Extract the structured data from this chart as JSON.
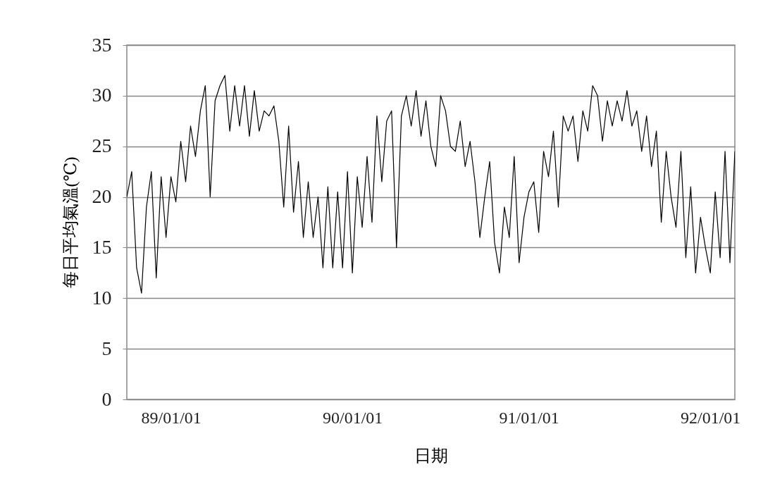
{
  "chart_data": {
    "type": "line",
    "xlabel": "日期",
    "ylabel": "每日平均氣溫(℃)",
    "color": "#000000",
    "grid": "y",
    "ylim": [
      0,
      35
    ],
    "yticks": [
      0,
      5,
      10,
      15,
      20,
      25,
      30,
      35
    ],
    "categories": [
      null,
      null,
      null,
      null,
      null,
      null,
      null,
      null,
      null,
      "89/01/01",
      null,
      null,
      null,
      null,
      null,
      null,
      null,
      null,
      null,
      null,
      null,
      null,
      null,
      null,
      null,
      null,
      null,
      null,
      null,
      null,
      null,
      null,
      null,
      null,
      null,
      null,
      null,
      null,
      null,
      null,
      null,
      null,
      null,
      null,
      null,
      null,
      "90/01/01",
      null,
      null,
      null,
      null,
      null,
      null,
      null,
      null,
      null,
      null,
      null,
      null,
      null,
      null,
      null,
      null,
      null,
      null,
      null,
      null,
      null,
      null,
      null,
      null,
      null,
      null,
      null,
      null,
      null,
      null,
      null,
      null,
      null,
      null,
      null,
      "91/01/01",
      null,
      null,
      null,
      null,
      null,
      null,
      null,
      null,
      null,
      null,
      null,
      null,
      null,
      null,
      null,
      null,
      null,
      null,
      null,
      null,
      null,
      null,
      null,
      null,
      null,
      null,
      null,
      null,
      null,
      null,
      null,
      null,
      null,
      null,
      null,
      null,
      "92/01/01",
      null,
      null,
      null,
      null,
      null
    ],
    "values": [
      20,
      22.5,
      13,
      10.5,
      19,
      22.5,
      12,
      22,
      16,
      22,
      19.5,
      25.5,
      21.5,
      27,
      24,
      28.5,
      31,
      20,
      29.5,
      31,
      32,
      26.5,
      31,
      27,
      31,
      26,
      30.5,
      26.5,
      28.5,
      28,
      29,
      25.5,
      19,
      27,
      18.5,
      23.5,
      16,
      21.5,
      16,
      20,
      13,
      21,
      13,
      20.5,
      13,
      22.5,
      12.5,
      22,
      17,
      24,
      17.5,
      28,
      21.5,
      27.5,
      28.5,
      15,
      28,
      30,
      27,
      30.5,
      26,
      29.5,
      25,
      23,
      30,
      28.5,
      25,
      24.5,
      27.5,
      23,
      25.5,
      21.5,
      16,
      20,
      23.5,
      15.5,
      12.5,
      19,
      16,
      24,
      13.5,
      18,
      20.5,
      21.5,
      16.5,
      24.5,
      22,
      26.5,
      19,
      28,
      26.5,
      28,
      23.5,
      28.5,
      26.5,
      31,
      30,
      25.5,
      29.5,
      27,
      29.5,
      27.5,
      30.5,
      27,
      28.5,
      24.5,
      28,
      23,
      26.5,
      17.5,
      24.5,
      20,
      17,
      24.5,
      14,
      21,
      12.5,
      18,
      15,
      12.5,
      20.5,
      14,
      24.5,
      13.5,
      24.5
    ]
  }
}
